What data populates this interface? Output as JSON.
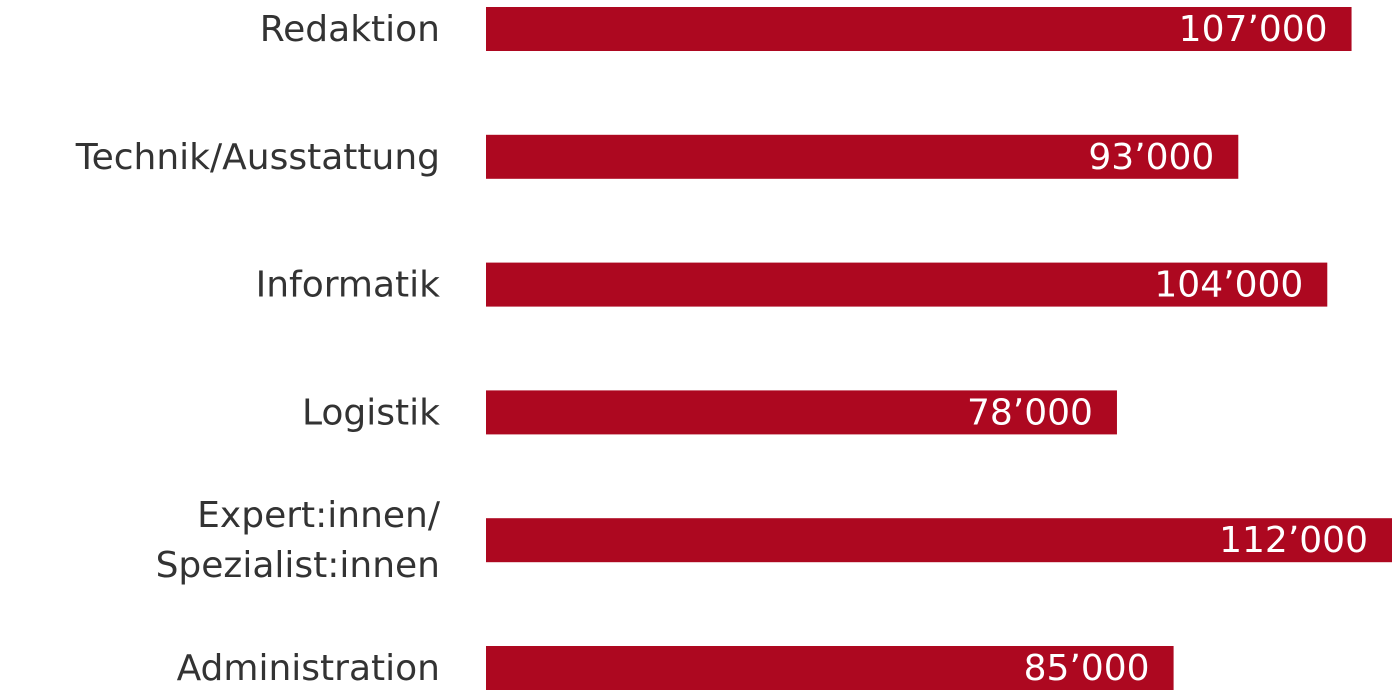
{
  "chart_data": {
    "type": "bar",
    "orientation": "horizontal",
    "color": "#ad0820",
    "categories": [
      "Redaktion",
      "Technik/Ausstattung",
      "Informatik",
      "Logistik",
      "Expert:innen/\nSpezialist:innen",
      "Administration"
    ],
    "values": [
      107000,
      93000,
      104000,
      78000,
      112000,
      85000
    ],
    "value_labels": [
      "107’000",
      "93’000",
      "104’000",
      "78’000",
      "112’000",
      "85’000"
    ]
  }
}
